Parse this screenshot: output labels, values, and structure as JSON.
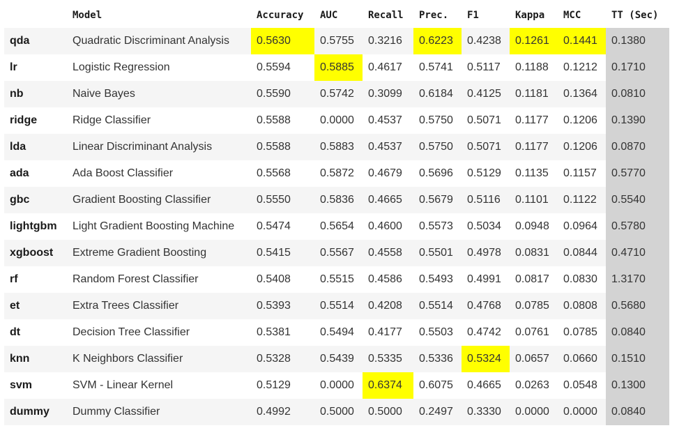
{
  "table": {
    "columns": [
      "",
      "Model",
      "Accuracy",
      "AUC",
      "Recall",
      "Prec.",
      "F1",
      "Kappa",
      "MCC",
      "TT (Sec)"
    ],
    "rows": [
      {
        "id": "qda",
        "values": [
          "Quadratic Discriminant Analysis",
          "0.5630",
          "0.5755",
          "0.3216",
          "0.6223",
          "0.4238",
          "0.1261",
          "0.1441",
          "0.1380"
        ]
      },
      {
        "id": "lr",
        "values": [
          "Logistic Regression",
          "0.5594",
          "0.5885",
          "0.4617",
          "0.5741",
          "0.5117",
          "0.1188",
          "0.1212",
          "0.1710"
        ]
      },
      {
        "id": "nb",
        "values": [
          "Naive Bayes",
          "0.5590",
          "0.5742",
          "0.3099",
          "0.6184",
          "0.4125",
          "0.1181",
          "0.1364",
          "0.0810"
        ]
      },
      {
        "id": "ridge",
        "values": [
          "Ridge Classifier",
          "0.5588",
          "0.0000",
          "0.4537",
          "0.5750",
          "0.5071",
          "0.1177",
          "0.1206",
          "0.1390"
        ]
      },
      {
        "id": "lda",
        "values": [
          "Linear Discriminant Analysis",
          "0.5588",
          "0.5883",
          "0.4537",
          "0.5750",
          "0.5071",
          "0.1177",
          "0.1206",
          "0.0870"
        ]
      },
      {
        "id": "ada",
        "values": [
          "Ada Boost Classifier",
          "0.5568",
          "0.5872",
          "0.4679",
          "0.5696",
          "0.5129",
          "0.1135",
          "0.1157",
          "0.5770"
        ]
      },
      {
        "id": "gbc",
        "values": [
          "Gradient Boosting Classifier",
          "0.5550",
          "0.5836",
          "0.4665",
          "0.5679",
          "0.5116",
          "0.1101",
          "0.1122",
          "0.5540"
        ]
      },
      {
        "id": "lightgbm",
        "values": [
          "Light Gradient Boosting Machine",
          "0.5474",
          "0.5654",
          "0.4600",
          "0.5573",
          "0.5034",
          "0.0948",
          "0.0964",
          "0.5780"
        ]
      },
      {
        "id": "xgboost",
        "values": [
          "Extreme Gradient Boosting",
          "0.5415",
          "0.5567",
          "0.4558",
          "0.5501",
          "0.4978",
          "0.0831",
          "0.0844",
          "0.4710"
        ]
      },
      {
        "id": "rf",
        "values": [
          "Random Forest Classifier",
          "0.5408",
          "0.5515",
          "0.4586",
          "0.5493",
          "0.4991",
          "0.0817",
          "0.0830",
          "1.3170"
        ]
      },
      {
        "id": "et",
        "values": [
          "Extra Trees Classifier",
          "0.5393",
          "0.5514",
          "0.4208",
          "0.5514",
          "0.4768",
          "0.0785",
          "0.0808",
          "0.5680"
        ]
      },
      {
        "id": "dt",
        "values": [
          "Decision Tree Classifier",
          "0.5381",
          "0.5494",
          "0.4177",
          "0.5503",
          "0.4742",
          "0.0761",
          "0.0785",
          "0.0840"
        ]
      },
      {
        "id": "knn",
        "values": [
          "K Neighbors Classifier",
          "0.5328",
          "0.5439",
          "0.5335",
          "0.5336",
          "0.5324",
          "0.0657",
          "0.0660",
          "0.1510"
        ]
      },
      {
        "id": "svm",
        "values": [
          "SVM - Linear Kernel",
          "0.5129",
          "0.0000",
          "0.6374",
          "0.6075",
          "0.4665",
          "0.0263",
          "0.0548",
          "0.1300"
        ]
      },
      {
        "id": "dummy",
        "values": [
          "Dummy Classifier",
          "0.4992",
          "0.5000",
          "0.5000",
          "0.2497",
          "0.3330",
          "0.0000",
          "0.0000",
          "0.0840"
        ]
      }
    ],
    "highlights": [
      {
        "row": "qda",
        "column": "Accuracy"
      },
      {
        "row": "lr",
        "column": "AUC"
      },
      {
        "row": "svm",
        "column": "Recall"
      },
      {
        "row": "qda",
        "column": "Prec."
      },
      {
        "row": "knn",
        "column": "F1"
      },
      {
        "row": "qda",
        "column": "Kappa"
      },
      {
        "row": "qda",
        "column": "MCC"
      }
    ],
    "highlight_color": "#ffff00",
    "tt_column_color": "#d3d3d3"
  }
}
